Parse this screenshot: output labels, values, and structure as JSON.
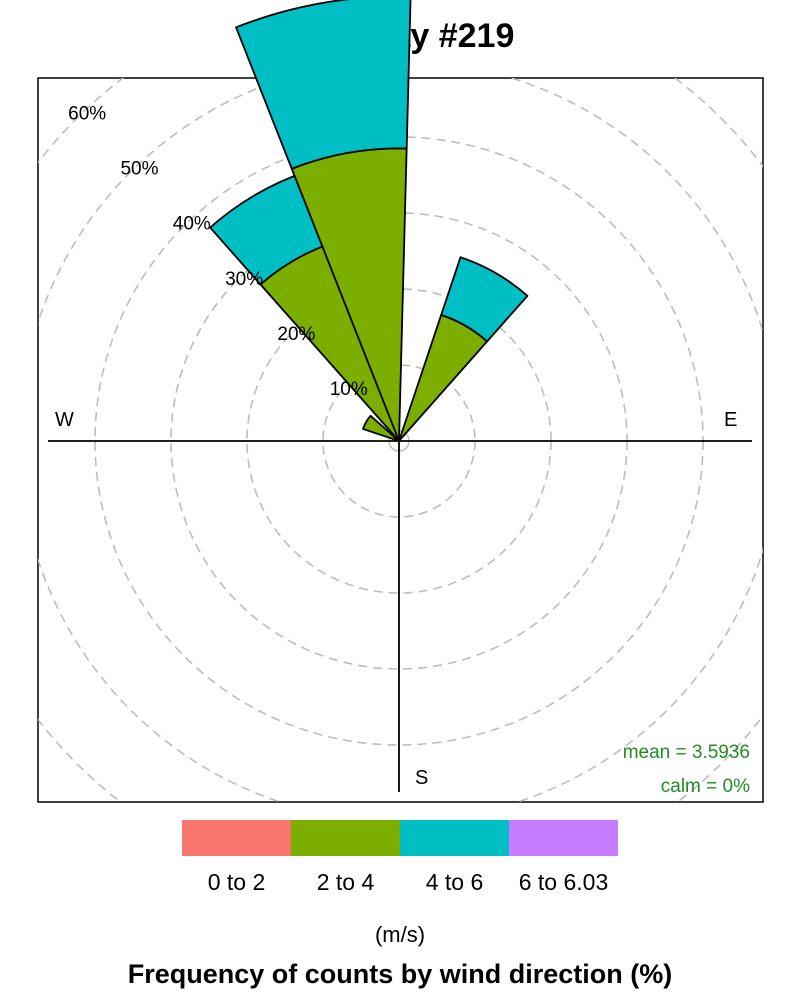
{
  "chart_data": {
    "type": "wind-rose",
    "title": "2016 day #219",
    "directions_deg": [
      315,
      330,
      345,
      0,
      15,
      30,
      45
    ],
    "compass_labels": {
      "W": "W",
      "E": "E",
      "S": "S"
    },
    "radial_ticks": [
      {
        "value": 10,
        "label": "10%"
      },
      {
        "value": 20,
        "label": "20%"
      },
      {
        "value": 30,
        "label": "30%"
      },
      {
        "value": 40,
        "label": "40%"
      },
      {
        "value": 50,
        "label": "50%"
      },
      {
        "value": 60,
        "label": "60%"
      }
    ],
    "rmax": 65,
    "grid": true,
    "series": [
      {
        "name": "0 to 2",
        "color": "#F8766D"
      },
      {
        "name": "2 to 4",
        "color": "#7CAE00"
      },
      {
        "name": "4 to 6",
        "color": "#00BFC4"
      },
      {
        "name": "6 to 6.03",
        "color": "#C77CFF"
      }
    ],
    "bars": [
      {
        "direction": 300,
        "values": [
          0.5,
          4.5,
          0,
          0
        ]
      },
      {
        "direction": 330,
        "values": [
          0.5,
          27,
          10,
          0
        ]
      },
      {
        "direction": 350,
        "values": [
          0.5,
          38,
          20,
          0
        ]
      },
      {
        "direction": 30,
        "values": [
          0.5,
          17,
          8,
          0
        ]
      }
    ],
    "stats": {
      "mean": "mean = 3.5936",
      "calm": "calm = 0%"
    },
    "legend_position": "bottom",
    "legend_units": "(m/s)",
    "footer": "Frequency of counts by wind direction (%)"
  }
}
